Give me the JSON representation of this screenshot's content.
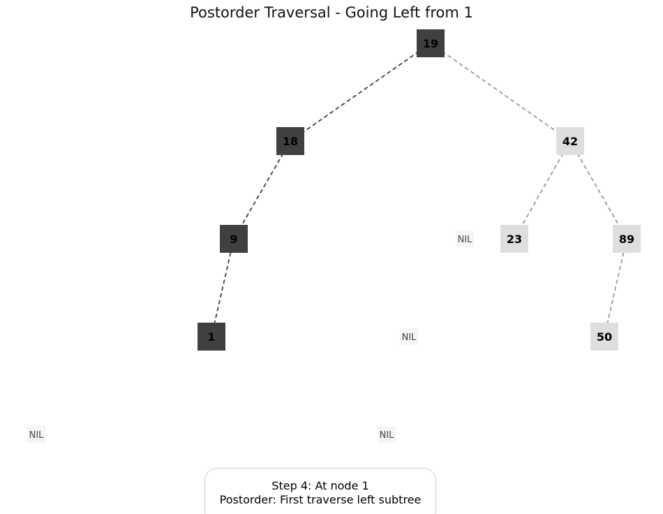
{
  "title": "Postorder Traversal - Going Left from 1",
  "colors": {
    "visited_node": "#404040",
    "unvisited_node": "#dedede",
    "nil_node": "#f5f5f5",
    "visited_edge": "#404040",
    "unvisited_edge": "#999999"
  },
  "nodes": [
    {
      "id": "n19",
      "label": "19",
      "state": "visited"
    },
    {
      "id": "n18",
      "label": "18",
      "state": "visited"
    },
    {
      "id": "n42",
      "label": "42",
      "state": "unvisited"
    },
    {
      "id": "n9",
      "label": "9",
      "state": "visited"
    },
    {
      "id": "n23",
      "label": "23",
      "state": "unvisited"
    },
    {
      "id": "n89",
      "label": "89",
      "state": "unvisited"
    },
    {
      "id": "n1",
      "label": "1",
      "state": "visited"
    },
    {
      "id": "n50",
      "label": "50",
      "state": "unvisited"
    }
  ],
  "nil_nodes": [
    {
      "id": "nil_a",
      "label": "NIL"
    },
    {
      "id": "nil_b",
      "label": "NIL"
    },
    {
      "id": "nil_c",
      "label": "NIL"
    },
    {
      "id": "nil_d",
      "label": "NIL"
    }
  ],
  "edges": [
    {
      "from": "n19",
      "to": "n18",
      "state": "visited"
    },
    {
      "from": "n19",
      "to": "n42",
      "state": "unvisited"
    },
    {
      "from": "n18",
      "to": "n9",
      "state": "visited"
    },
    {
      "from": "n9",
      "to": "n1",
      "state": "visited"
    },
    {
      "from": "n42",
      "to": "n23",
      "state": "unvisited"
    },
    {
      "from": "n42",
      "to": "n89",
      "state": "unvisited"
    },
    {
      "from": "n89",
      "to": "n50",
      "state": "unvisited"
    }
  ],
  "status": {
    "line1": "Step 4: At node 1",
    "line2": "Postorder: First traverse left subtree"
  }
}
